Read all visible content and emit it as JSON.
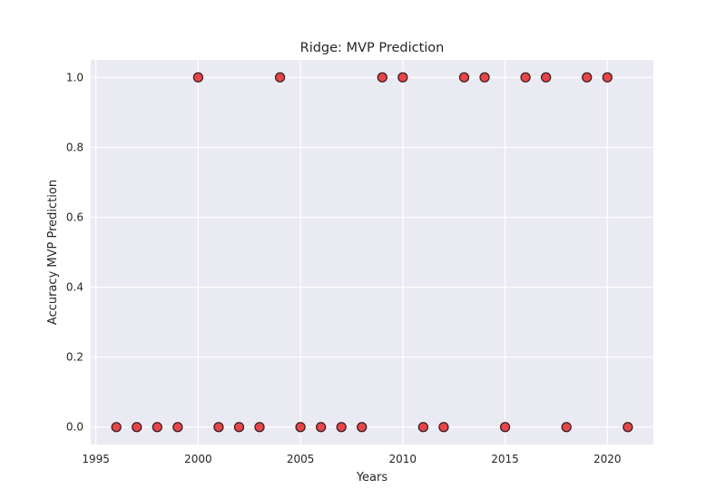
{
  "chart_data": {
    "type": "scatter",
    "title": "Ridge: MVP Prediction",
    "xlabel": "Years",
    "ylabel": "Accuracy MVP Prediction",
    "xlim": [
      1994.75,
      2022.25
    ],
    "ylim": [
      -0.05,
      1.05
    ],
    "xticks": [
      1995,
      2000,
      2005,
      2010,
      2015,
      2020
    ],
    "yticks": [
      0.0,
      0.2,
      0.4,
      0.6,
      0.8,
      1.0
    ],
    "grid": true,
    "marker_color": "#e8454a",
    "marker_edge_color": "#3a2020",
    "background_color": "#eaeaf2",
    "points": [
      {
        "x": 1996,
        "y": 0
      },
      {
        "x": 1997,
        "y": 0
      },
      {
        "x": 1998,
        "y": 0
      },
      {
        "x": 1999,
        "y": 0
      },
      {
        "x": 2000,
        "y": 1
      },
      {
        "x": 2001,
        "y": 0
      },
      {
        "x": 2002,
        "y": 0
      },
      {
        "x": 2003,
        "y": 0
      },
      {
        "x": 2004,
        "y": 1
      },
      {
        "x": 2005,
        "y": 0
      },
      {
        "x": 2006,
        "y": 0
      },
      {
        "x": 2007,
        "y": 0
      },
      {
        "x": 2008,
        "y": 0
      },
      {
        "x": 2009,
        "y": 1
      },
      {
        "x": 2010,
        "y": 1
      },
      {
        "x": 2011,
        "y": 0
      },
      {
        "x": 2012,
        "y": 0
      },
      {
        "x": 2013,
        "y": 1
      },
      {
        "x": 2014,
        "y": 1
      },
      {
        "x": 2015,
        "y": 0
      },
      {
        "x": 2016,
        "y": 1
      },
      {
        "x": 2017,
        "y": 1
      },
      {
        "x": 2018,
        "y": 0
      },
      {
        "x": 2019,
        "y": 1
      },
      {
        "x": 2020,
        "y": 1
      },
      {
        "x": 2021,
        "y": 0
      }
    ]
  }
}
